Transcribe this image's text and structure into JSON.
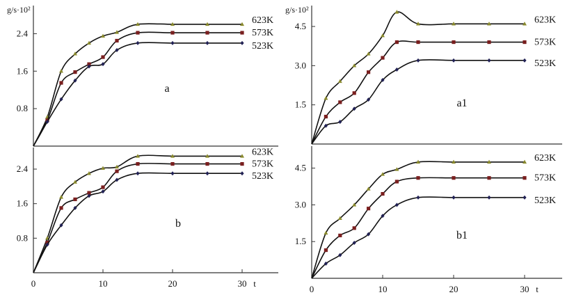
{
  "chart_data": [
    {
      "type": "line",
      "panel_label": "a",
      "y_unit_label": "g/s·10²",
      "x_axis_label": "",
      "ylim": [
        0,
        3.0
      ],
      "xlim": [
        0,
        31
      ],
      "yticks": [
        0.8,
        1.6,
        2.4
      ],
      "xticks": [],
      "series": [
        {
          "name": "623K",
          "marker": "triangle",
          "color": "#8a8a2e",
          "x": [
            2,
            4,
            6,
            8,
            10,
            12,
            15,
            20,
            25,
            30
          ],
          "y": [
            0.62,
            1.6,
            1.97,
            2.2,
            2.35,
            2.43,
            2.6,
            2.6,
            2.6,
            2.6
          ]
        },
        {
          "name": "573K",
          "marker": "square",
          "color": "#7a1f1f",
          "x": [
            2,
            4,
            6,
            8,
            10,
            12,
            15,
            20,
            25,
            30
          ],
          "y": [
            0.55,
            1.35,
            1.58,
            1.75,
            1.9,
            2.25,
            2.42,
            2.42,
            2.42,
            2.42
          ]
        },
        {
          "name": "523K",
          "marker": "diamond",
          "color": "#222255",
          "x": [
            2,
            4,
            6,
            8,
            10,
            12,
            15,
            20,
            25,
            30
          ],
          "y": [
            0.52,
            1.0,
            1.4,
            1.7,
            1.75,
            2.05,
            2.2,
            2.2,
            2.2,
            2.2
          ]
        }
      ]
    },
    {
      "type": "line",
      "panel_label": "b",
      "y_unit_label": "",
      "x_axis_label": "t",
      "ylim": [
        0,
        2.9
      ],
      "xlim": [
        0,
        31
      ],
      "yticks": [
        0.8,
        1.6,
        2.4
      ],
      "xticks": [
        0,
        10,
        20,
        30
      ],
      "series": [
        {
          "name": "623K",
          "marker": "triangle",
          "color": "#8a8a2e",
          "x": [
            2,
            4,
            6,
            8,
            10,
            12,
            15,
            20,
            25,
            30
          ],
          "y": [
            0.8,
            1.75,
            2.1,
            2.3,
            2.42,
            2.45,
            2.7,
            2.7,
            2.7,
            2.7
          ]
        },
        {
          "name": "573K",
          "marker": "square",
          "color": "#7a1f1f",
          "x": [
            2,
            4,
            6,
            8,
            10,
            12,
            15,
            20,
            25,
            30
          ],
          "y": [
            0.7,
            1.5,
            1.7,
            1.85,
            1.98,
            2.35,
            2.52,
            2.52,
            2.52,
            2.52
          ]
        },
        {
          "name": "523K",
          "marker": "diamond",
          "color": "#222255",
          "x": [
            2,
            4,
            6,
            8,
            10,
            12,
            15,
            20,
            25,
            30
          ],
          "y": [
            0.65,
            1.1,
            1.5,
            1.78,
            1.88,
            2.15,
            2.3,
            2.3,
            2.3,
            2.3
          ]
        }
      ]
    },
    {
      "type": "line",
      "panel_label": "a1",
      "y_unit_label": "g/s·10²",
      "x_axis_label": "",
      "ylim": [
        0,
        5.3
      ],
      "xlim": [
        0,
        31
      ],
      "yticks": [
        1.5,
        3.0,
        4.5
      ],
      "xticks": [],
      "series": [
        {
          "name": "623K",
          "marker": "triangle",
          "color": "#8a8a2e",
          "x": [
            2,
            4,
            6,
            8,
            10,
            12,
            15,
            20,
            25,
            30
          ],
          "y": [
            1.75,
            2.4,
            3.0,
            3.45,
            4.15,
            5.05,
            4.6,
            4.6,
            4.6,
            4.6
          ]
        },
        {
          "name": "573K",
          "marker": "square",
          "color": "#7a1f1f",
          "x": [
            2,
            4,
            6,
            8,
            10,
            12,
            15,
            20,
            25,
            30
          ],
          "y": [
            1.05,
            1.6,
            1.95,
            2.75,
            3.3,
            3.9,
            3.9,
            3.9,
            3.9,
            3.9
          ]
        },
        {
          "name": "523K",
          "marker": "diamond",
          "color": "#222255",
          "x": [
            2,
            4,
            6,
            8,
            10,
            12,
            15,
            20,
            25,
            30
          ],
          "y": [
            0.7,
            0.85,
            1.35,
            1.7,
            2.45,
            2.85,
            3.2,
            3.2,
            3.2,
            3.2
          ]
        }
      ]
    },
    {
      "type": "line",
      "panel_label": "b1",
      "y_unit_label": "",
      "x_axis_label": "t",
      "ylim": [
        0,
        5.4
      ],
      "xlim": [
        0,
        31
      ],
      "yticks": [
        1.5,
        3.0,
        4.5
      ],
      "xticks": [
        0,
        10,
        20,
        30
      ],
      "series": [
        {
          "name": "623K",
          "marker": "triangle",
          "color": "#8a8a2e",
          "x": [
            2,
            4,
            6,
            8,
            10,
            12,
            15,
            20,
            25,
            30
          ],
          "y": [
            1.85,
            2.45,
            3.0,
            3.65,
            4.25,
            4.45,
            4.75,
            4.75,
            4.75,
            4.75
          ]
        },
        {
          "name": "573K",
          "marker": "square",
          "color": "#7a1f1f",
          "x": [
            2,
            4,
            6,
            8,
            10,
            12,
            15,
            20,
            25,
            30
          ],
          "y": [
            1.15,
            1.75,
            2.05,
            2.85,
            3.45,
            3.95,
            4.1,
            4.1,
            4.1,
            4.1
          ]
        },
        {
          "name": "523K",
          "marker": "diamond",
          "color": "#222255",
          "x": [
            2,
            4,
            6,
            8,
            10,
            12,
            15,
            20,
            25,
            30
          ],
          "y": [
            0.6,
            0.95,
            1.45,
            1.8,
            2.55,
            3.0,
            3.3,
            3.3,
            3.3,
            3.3
          ]
        }
      ]
    }
  ]
}
